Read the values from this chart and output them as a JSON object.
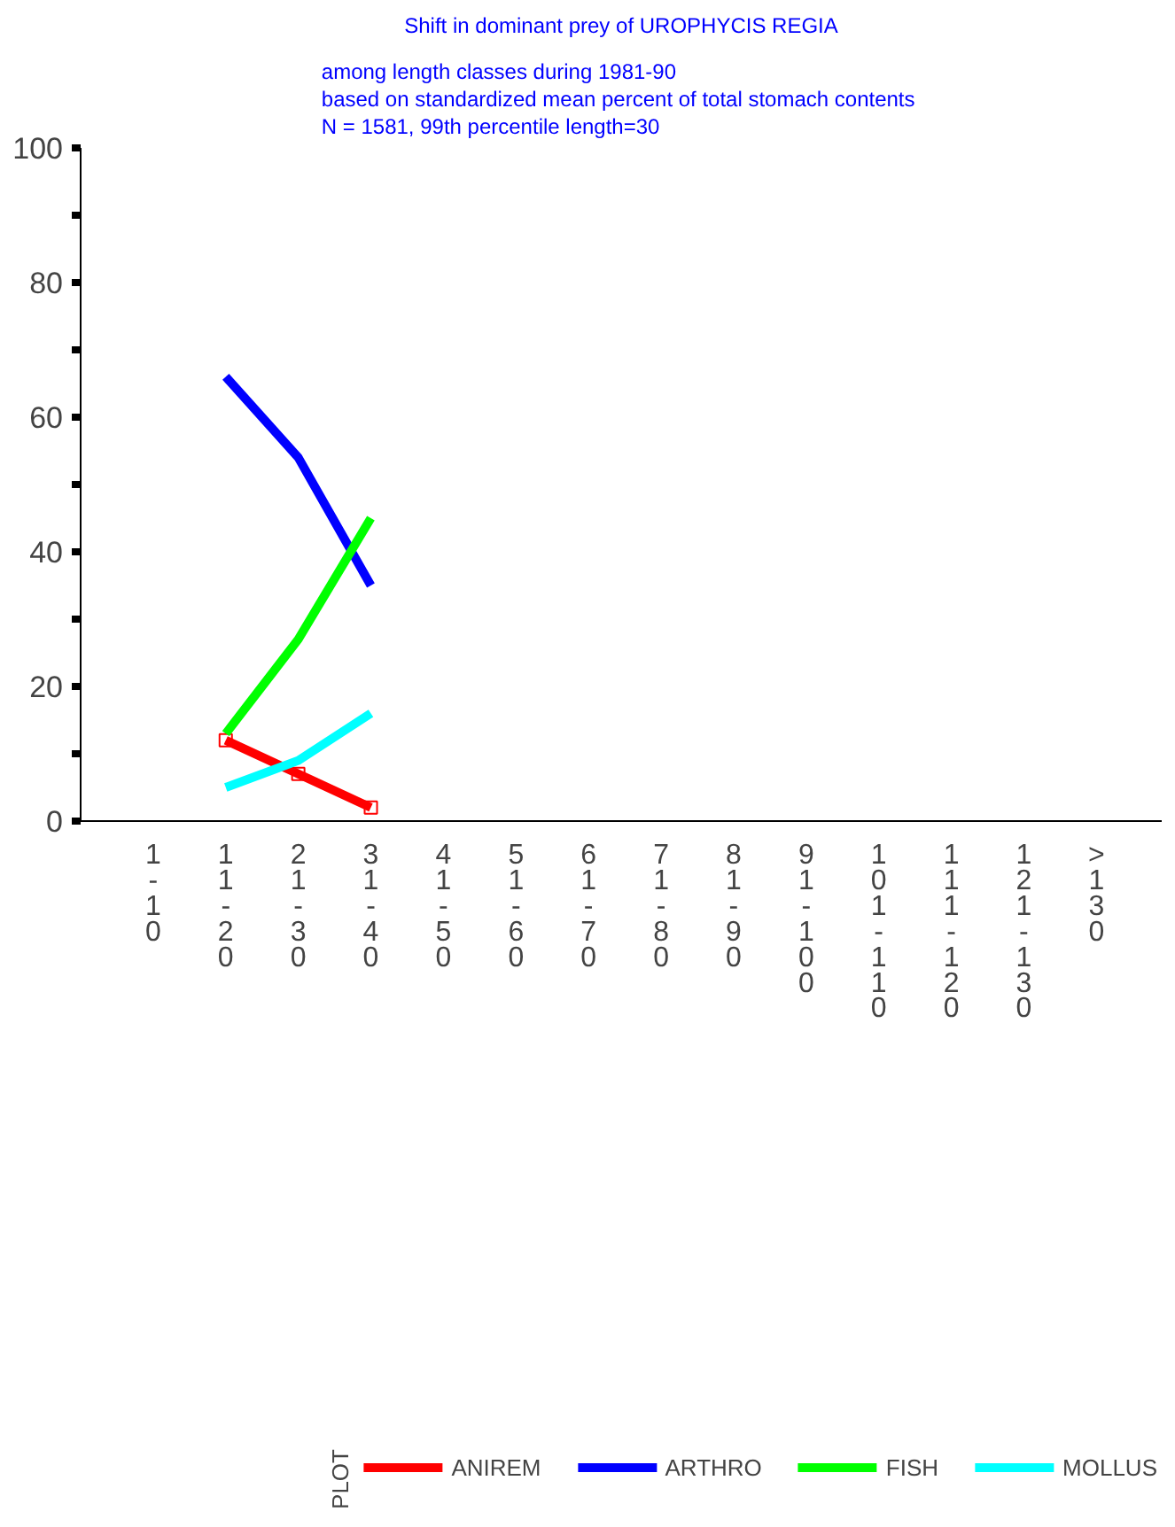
{
  "chart_data": {
    "type": "line",
    "title": "Shift in dominant prey of UROPHYCIS REGIA",
    "subtitle": "among length classes during 1981-90\nbased on standardized mean percent of  total stomach contents\nN = 1581, 99th percentile  length=30",
    "categories": [
      "1-10",
      "11-20",
      "21-30",
      "31-40",
      "41-50",
      "51-60",
      "61-70",
      "71-80",
      "81-90",
      "91-100",
      "101-110",
      "111-120",
      "121-130",
      ">130"
    ],
    "series": [
      {
        "name": "ANIREM",
        "color": "#ff0000",
        "marker": "square",
        "values": [
          null,
          12,
          7,
          2,
          null,
          null,
          null,
          null,
          null,
          null,
          null,
          null,
          null,
          null
        ]
      },
      {
        "name": "ARTHRO",
        "color": "#0000ff",
        "values": [
          null,
          66,
          54,
          35,
          null,
          null,
          null,
          null,
          null,
          null,
          null,
          null,
          null,
          null
        ]
      },
      {
        "name": "FISH",
        "color": "#00ff00",
        "values": [
          null,
          13,
          27,
          45,
          null,
          null,
          null,
          null,
          null,
          null,
          null,
          null,
          null,
          null
        ]
      },
      {
        "name": "MOLLUS",
        "color": "#00ffff",
        "values": [
          null,
          5,
          9,
          16,
          null,
          null,
          null,
          null,
          null,
          null,
          null,
          null,
          null,
          null
        ]
      }
    ],
    "ylim": [
      0,
      100
    ],
    "yticks": [
      0,
      {
        "value": 10,
        "label": null
      },
      20,
      {
        "value": 30,
        "label": null
      },
      40,
      {
        "value": 50,
        "label": null
      },
      60,
      {
        "value": 70,
        "label": null
      },
      80,
      {
        "value": 90,
        "label": null
      },
      100
    ],
    "legend": "bottom",
    "legend_title": "PLOT",
    "grid": false
  }
}
